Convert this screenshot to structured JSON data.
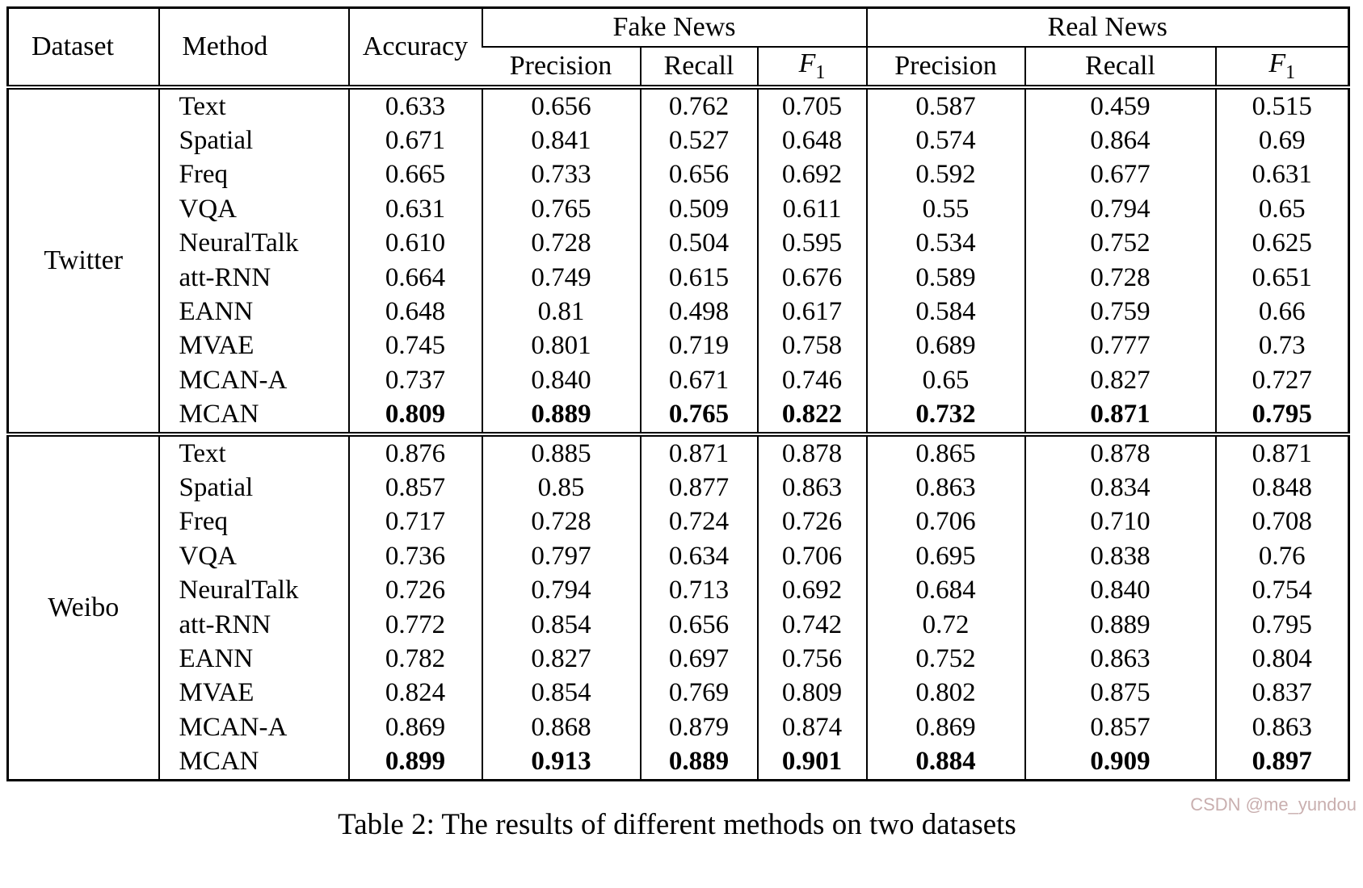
{
  "table": {
    "headers": {
      "dataset": "Dataset",
      "method": "Method",
      "accuracy": "Accuracy",
      "fake_news": "Fake News",
      "real_news": "Real News",
      "precision": "Precision",
      "recall": "Recall",
      "f1_main": "F",
      "f1_sub": "1"
    },
    "sections": [
      {
        "dataset": "Twitter",
        "rows": [
          {
            "method": "Text",
            "bold": false,
            "values": [
              "0.633",
              "0.656",
              "0.762",
              "0.705",
              "0.587",
              "0.459",
              "0.515"
            ]
          },
          {
            "method": "Spatial",
            "bold": false,
            "values": [
              "0.671",
              "0.841",
              "0.527",
              "0.648",
              "0.574",
              "0.864",
              "0.69"
            ]
          },
          {
            "method": "Freq",
            "bold": false,
            "values": [
              "0.665",
              "0.733",
              "0.656",
              "0.692",
              "0.592",
              "0.677",
              "0.631"
            ]
          },
          {
            "method": "VQA",
            "bold": false,
            "values": [
              "0.631",
              "0.765",
              "0.509",
              "0.611",
              "0.55",
              "0.794",
              "0.65"
            ]
          },
          {
            "method": "NeuralTalk",
            "bold": false,
            "values": [
              "0.610",
              "0.728",
              "0.504",
              "0.595",
              "0.534",
              "0.752",
              "0.625"
            ]
          },
          {
            "method": "att-RNN",
            "bold": false,
            "values": [
              "0.664",
              "0.749",
              "0.615",
              "0.676",
              "0.589",
              "0.728",
              "0.651"
            ]
          },
          {
            "method": "EANN",
            "bold": false,
            "values": [
              "0.648",
              "0.81",
              "0.498",
              "0.617",
              "0.584",
              "0.759",
              "0.66"
            ]
          },
          {
            "method": "MVAE",
            "bold": false,
            "values": [
              "0.745",
              "0.801",
              "0.719",
              "0.758",
              "0.689",
              "0.777",
              "0.73"
            ]
          },
          {
            "method": "MCAN-A",
            "bold": false,
            "values": [
              "0.737",
              "0.840",
              "0.671",
              "0.746",
              "0.65",
              "0.827",
              "0.727"
            ]
          },
          {
            "method": "MCAN",
            "bold": true,
            "values": [
              "0.809",
              "0.889",
              "0.765",
              "0.822",
              "0.732",
              "0.871",
              "0.795"
            ]
          }
        ]
      },
      {
        "dataset": "Weibo",
        "rows": [
          {
            "method": "Text",
            "bold": false,
            "values": [
              "0.876",
              "0.885",
              "0.871",
              "0.878",
              "0.865",
              "0.878",
              "0.871"
            ]
          },
          {
            "method": "Spatial",
            "bold": false,
            "values": [
              "0.857",
              "0.85",
              "0.877",
              "0.863",
              "0.863",
              "0.834",
              "0.848"
            ]
          },
          {
            "method": "Freq",
            "bold": false,
            "values": [
              "0.717",
              "0.728",
              "0.724",
              "0.726",
              "0.706",
              "0.710",
              "0.708"
            ]
          },
          {
            "method": "VQA",
            "bold": false,
            "values": [
              "0.736",
              "0.797",
              "0.634",
              "0.706",
              "0.695",
              "0.838",
              "0.76"
            ]
          },
          {
            "method": "NeuralTalk",
            "bold": false,
            "values": [
              "0.726",
              "0.794",
              "0.713",
              "0.692",
              "0.684",
              "0.840",
              "0.754"
            ]
          },
          {
            "method": "att-RNN",
            "bold": false,
            "values": [
              "0.772",
              "0.854",
              "0.656",
              "0.742",
              "0.72",
              "0.889",
              "0.795"
            ]
          },
          {
            "method": "EANN",
            "bold": false,
            "values": [
              "0.782",
              "0.827",
              "0.697",
              "0.756",
              "0.752",
              "0.863",
              "0.804"
            ]
          },
          {
            "method": "MVAE",
            "bold": false,
            "values": [
              "0.824",
              "0.854",
              "0.769",
              "0.809",
              "0.802",
              "0.875",
              "0.837"
            ]
          },
          {
            "method": "MCAN-A",
            "bold": false,
            "values": [
              "0.869",
              "0.868",
              "0.879",
              "0.874",
              "0.869",
              "0.857",
              "0.863"
            ]
          },
          {
            "method": "MCAN",
            "bold": true,
            "values": [
              "0.899",
              "0.913",
              "0.889",
              "0.901",
              "0.884",
              "0.909",
              "0.897"
            ]
          }
        ]
      }
    ],
    "caption": "Table 2: The results of different methods on two datasets",
    "watermark": "CSDN @me_yundou"
  }
}
